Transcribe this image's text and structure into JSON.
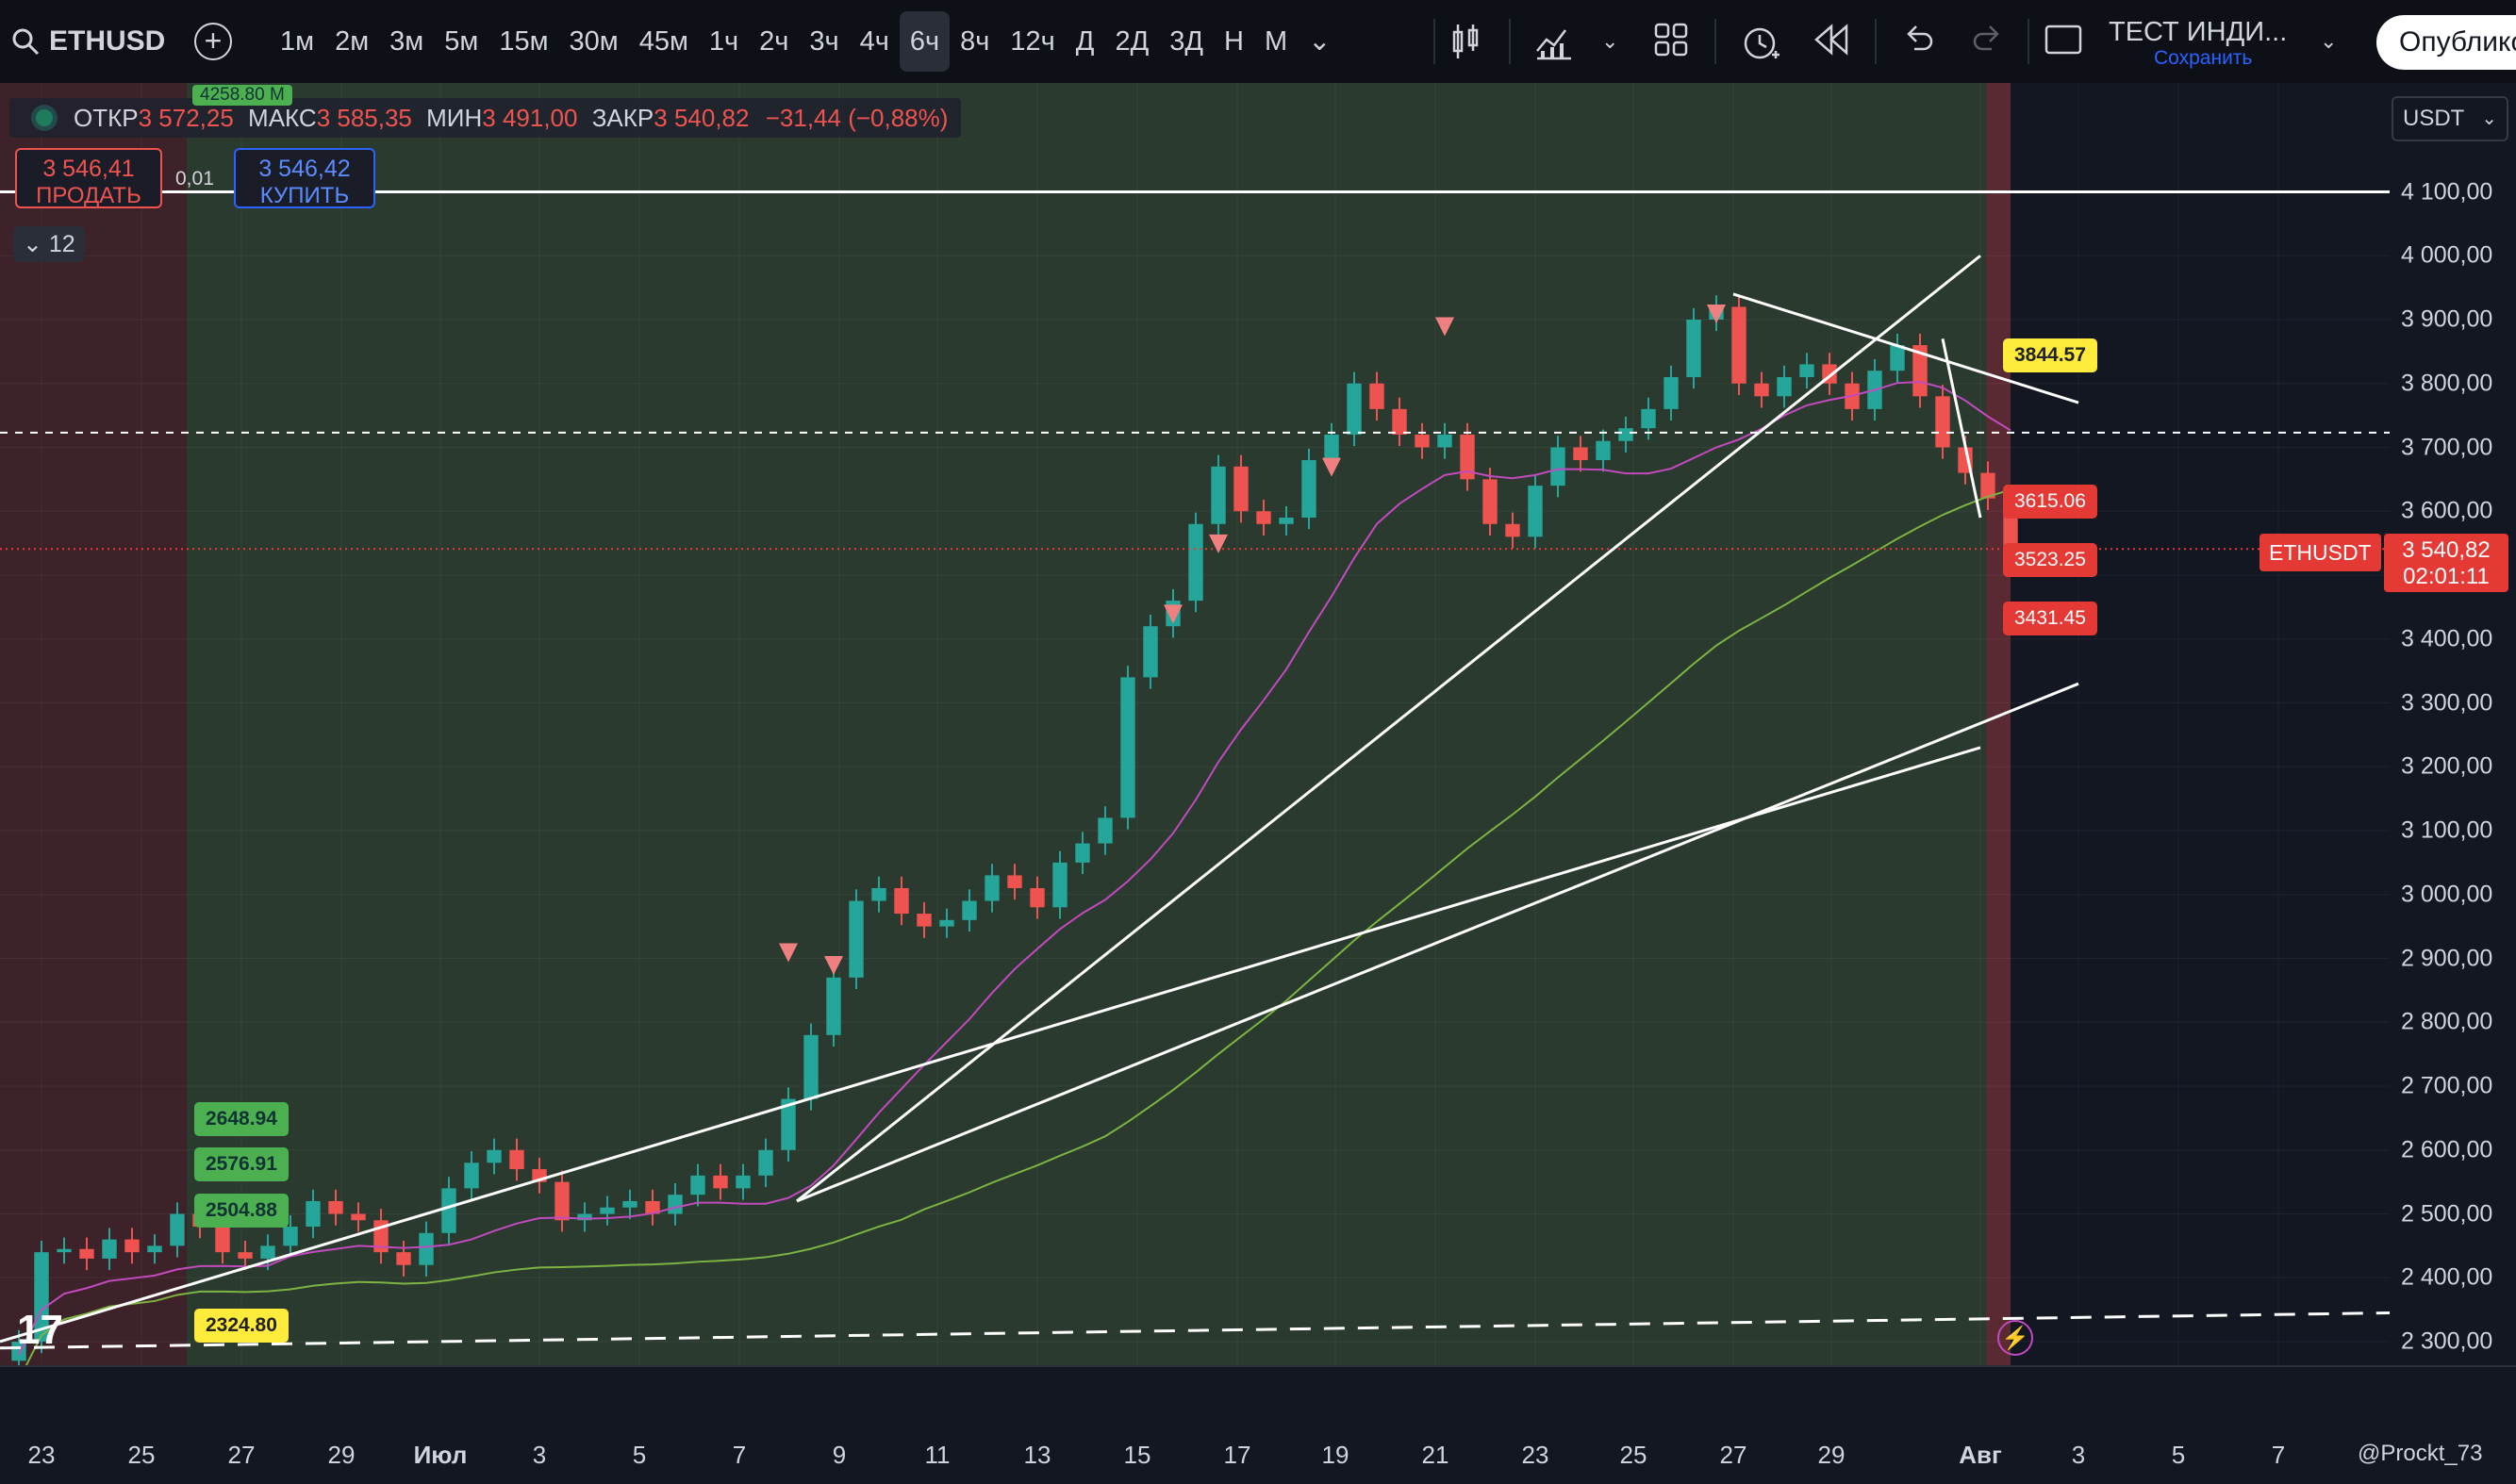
{
  "header": {
    "symbol": "ETHUSD",
    "intervals": [
      "1м",
      "2м",
      "3м",
      "5м",
      "15м",
      "30м",
      "45м",
      "1ч",
      "2ч",
      "3ч",
      "4ч",
      "6ч",
      "8ч",
      "12ч",
      "Д",
      "2Д",
      "3Д",
      "Н",
      "М"
    ],
    "active_interval": "6ч",
    "indicator_name": "ТЕСТ ИНДИ...",
    "indicator_status": "Сохранить",
    "publish_label": "Опублико"
  },
  "legend": {
    "open_label": "ОТКР",
    "open": "3 572,25",
    "high_label": "МАКС",
    "high": "3 585,35",
    "low_label": "МИН",
    "low": "3 491,00",
    "close_label": "ЗАКР",
    "close": "3 540,82",
    "change": "−31,44 (−0,88%)",
    "top_partial_label": "4258.80 M"
  },
  "trade_panel": {
    "sell_price": "3 546,41",
    "sell_label": "ПРОДАТЬ",
    "buy_price": "3 546,42",
    "buy_label": "КУПИТЬ",
    "spread": "0,01",
    "collapse_count": "12"
  },
  "currency": "USDT",
  "last_price": {
    "symbol_tag": "ETHUSDT",
    "price": "3 540,82",
    "countdown": "02:01:11"
  },
  "level_tags": {
    "green": [
      "2648.94",
      "2576.91",
      "2504.88"
    ],
    "yellow_low": "2324.80",
    "yellow_high": "3844.57",
    "red": [
      "3615.06",
      "3523.25",
      "3431.45"
    ]
  },
  "credit": "@Prockt_73",
  "colors": {
    "up": "#26a69a",
    "down": "#ef5350",
    "bg": "#131722",
    "green_zone": "#2b3a2e",
    "red_zone": "#3d2329",
    "ma_fast": "#c24abf",
    "ma_slow": "#7cb342",
    "trendline": "#ffffff"
  },
  "chart_data": {
    "type": "candlestick",
    "ylim": [
      2270,
      4180
    ],
    "y_ticks": [
      2300,
      2400,
      2500,
      2600,
      2700,
      2800,
      2900,
      3000,
      3100,
      3200,
      3300,
      3400,
      3500,
      3600,
      3700,
      3800,
      3900,
      4000,
      4100
    ],
    "y_tick_labels": [
      "2 300,00",
      "2 400,00",
      "2 500,00",
      "2 600,00",
      "2 700,00",
      "2 800,00",
      "2 900,00",
      "3 000,00",
      "3 100,00",
      "3 200,00",
      "3 300,00",
      "3 400,00",
      "3 500,00",
      "3 600,00",
      "3 700,00",
      "3 800,00",
      "3 900,00",
      "4 000,00",
      "4 100,00"
    ],
    "x_tick_labels": [
      "23",
      "25",
      "27",
      "29",
      "Июл",
      "3",
      "5",
      "7",
      "9",
      "11",
      "13",
      "15",
      "17",
      "19",
      "21",
      "23",
      "25",
      "27",
      "29",
      "Авг",
      "3",
      "5",
      "7"
    ],
    "series_close_path": [
      2300,
      2440,
      2445,
      2430,
      2460,
      2440,
      2450,
      2500,
      2480,
      2440,
      2430,
      2450,
      2480,
      2520,
      2500,
      2490,
      2440,
      2420,
      2470,
      2540,
      2580,
      2600,
      2570,
      2550,
      2490,
      2500,
      2510,
      2520,
      2500,
      2530,
      2560,
      2540,
      2560,
      2600,
      2680,
      2780,
      2870,
      2990,
      3010,
      2970,
      2950,
      2960,
      2990,
      3030,
      3010,
      2980,
      3050,
      3080,
      3120,
      3340,
      3420,
      3460,
      3580,
      3670,
      3600,
      3580,
      3590,
      3680,
      3720,
      3800,
      3760,
      3720,
      3700,
      3720,
      3650,
      3580,
      3560,
      3640,
      3700,
      3680,
      3710,
      3730,
      3760,
      3810,
      3900,
      3920,
      3800,
      3780,
      3810,
      3830,
      3800,
      3760,
      3820,
      3860,
      3780,
      3700,
      3660,
      3620,
      3541
    ],
    "markers": [
      {
        "type": "sell",
        "x_index": 34,
        "y": 2900
      },
      {
        "type": "sell",
        "x_index": 36,
        "y": 2880
      },
      {
        "type": "sell",
        "x_index": 51,
        "y": 3430
      },
      {
        "type": "sell",
        "x_index": 53,
        "y": 3540
      },
      {
        "type": "sell",
        "x_index": 58,
        "y": 3660
      },
      {
        "type": "sell",
        "x_index": 63,
        "y": 3880
      },
      {
        "type": "sell",
        "x_index": 75,
        "y": 3900
      }
    ],
    "horizontal_levels": [
      {
        "price": 4100,
        "style": "solid"
      },
      {
        "price": 3723,
        "style": "dashed"
      },
      {
        "price": 3541,
        "style": "dotted"
      }
    ],
    "trendlines": [
      {
        "from": {
          "x": "9",
          "y": 2520
        },
        "to": {
          "x": "Авг",
          "y": 4000
        }
      },
      {
        "from": {
          "x": "9",
          "y": 2520
        },
        "to": {
          "x": "3",
          "y": 3330
        }
      },
      {
        "from": {
          "x": "23",
          "y": 2300
        },
        "to": {
          "x": "Авг",
          "y": 3230
        }
      },
      {
        "from": {
          "x": "27",
          "y": 3940
        },
        "to": {
          "x": "3",
          "y": 3770
        }
      },
      {
        "from": {
          "x": "31",
          "y": 3870
        },
        "to": {
          "x": "Авг",
          "y": 3590
        }
      },
      {
        "from": {
          "x": "23",
          "y": 2290
        },
        "to": {
          "x": "7",
          "y": 2345
        },
        "style": "dashed"
      }
    ]
  }
}
